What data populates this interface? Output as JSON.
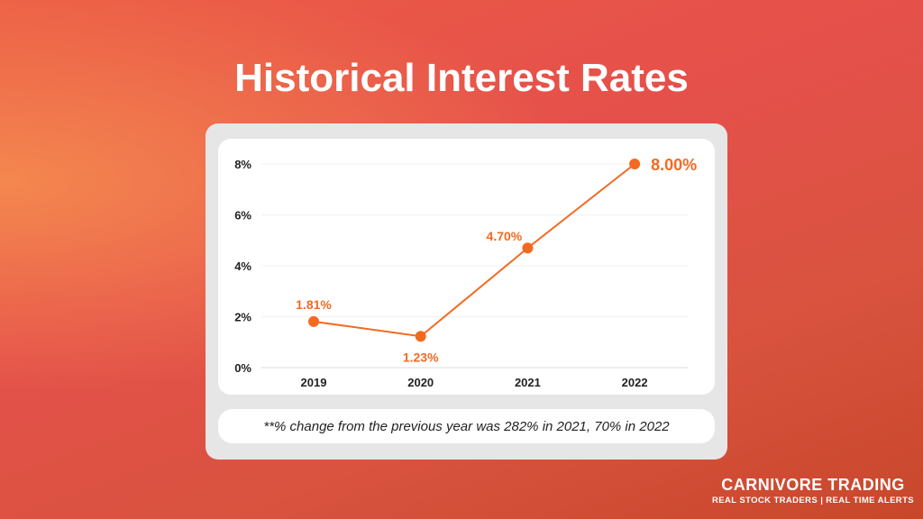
{
  "title": "Historical Interest Rates",
  "chart_data": {
    "type": "line",
    "categories": [
      "2019",
      "2020",
      "2021",
      "2022"
    ],
    "values": [
      1.81,
      1.23,
      4.7,
      8.0
    ],
    "data_labels": [
      "1.81%",
      "1.23%",
      "4.70%",
      "8.00%"
    ],
    "y_ticks": [
      "0%",
      "2%",
      "4%",
      "6%",
      "8%"
    ],
    "ylim": [
      0,
      8
    ],
    "grid": true,
    "color": "#f26a21"
  },
  "note": "**% change from the previous year was 282% in 2021, 70% in 2022",
  "brand": {
    "name": "CARNIVORE TRADING",
    "tagline": "REAL STOCK TRADERS | REAL TIME ALERTS"
  }
}
